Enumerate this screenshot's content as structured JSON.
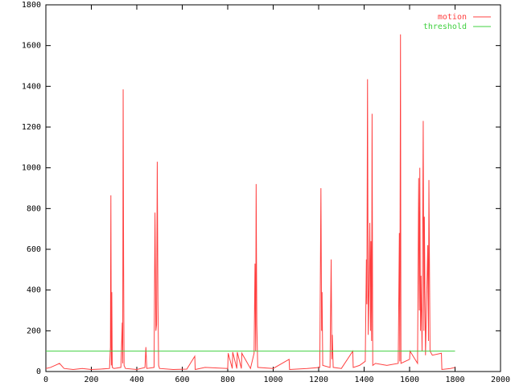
{
  "chart_data": {
    "type": "line",
    "series": [
      {
        "name": "motion",
        "color": "#ff4040",
        "x": [
          0,
          20,
          40,
          60,
          80,
          120,
          160,
          200,
          240,
          280,
          284,
          286,
          288,
          290,
          292,
          300,
          330,
          336,
          338,
          340,
          342,
          344,
          350,
          400,
          436,
          440,
          444,
          476,
          480,
          484,
          487,
          490,
          493,
          496,
          500,
          560,
          620,
          655,
          657,
          700,
          800,
          802,
          820,
          822,
          840,
          842,
          860,
          862,
          900,
          916,
          920,
          923,
          925,
          928,
          932,
          1000,
          1070,
          1072,
          1150,
          1205,
          1210,
          1213,
          1215,
          1218,
          1250,
          1255,
          1258,
          1260,
          1264,
          1300,
          1350,
          1352,
          1380,
          1405,
          1410,
          1412,
          1415,
          1418,
          1422,
          1425,
          1428,
          1430,
          1433,
          1435,
          1438,
          1450,
          1500,
          1550,
          1555,
          1557,
          1560,
          1562,
          1600,
          1602,
          1635,
          1640,
          1643,
          1645,
          1648,
          1650,
          1655,
          1660,
          1663,
          1665,
          1670,
          1680,
          1683,
          1685,
          1690,
          1700,
          1740,
          1742,
          1780,
          1800
        ],
        "values": [
          15,
          20,
          30,
          40,
          15,
          10,
          15,
          10,
          12,
          15,
          120,
          865,
          30,
          390,
          20,
          15,
          20,
          240,
          40,
          1385,
          525,
          30,
          15,
          10,
          20,
          120,
          15,
          20,
          780,
          200,
          230,
          1030,
          350,
          30,
          15,
          10,
          12,
          75,
          10,
          20,
          15,
          90,
          15,
          95,
          15,
          95,
          15,
          90,
          15,
          90,
          530,
          100,
          920,
          230,
          20,
          15,
          60,
          10,
          15,
          20,
          900,
          200,
          390,
          30,
          20,
          550,
          60,
          180,
          20,
          15,
          100,
          20,
          30,
          50,
          550,
          330,
          1435,
          180,
          430,
          730,
          200,
          640,
          150,
          1265,
          30,
          40,
          30,
          40,
          680,
          50,
          1655,
          40,
          60,
          100,
          40,
          950,
          300,
          1000,
          200,
          470,
          100,
          1230,
          200,
          760,
          80,
          620,
          150,
          940,
          100,
          80,
          90,
          10,
          15,
          20
        ]
      },
      {
        "name": "threshold",
        "color": "#40d040",
        "x": [
          0,
          1800
        ],
        "values": [
          100,
          100
        ]
      }
    ],
    "xlim": [
      0,
      2000
    ],
    "xticks": [
      0,
      200,
      400,
      600,
      800,
      1000,
      1200,
      1400,
      1600,
      1800,
      2000
    ],
    "ylim": [
      0,
      1800
    ],
    "yticks": [
      0,
      200,
      400,
      600,
      800,
      1000,
      1200,
      1400,
      1600,
      1800
    ],
    "legend": "top-right"
  }
}
